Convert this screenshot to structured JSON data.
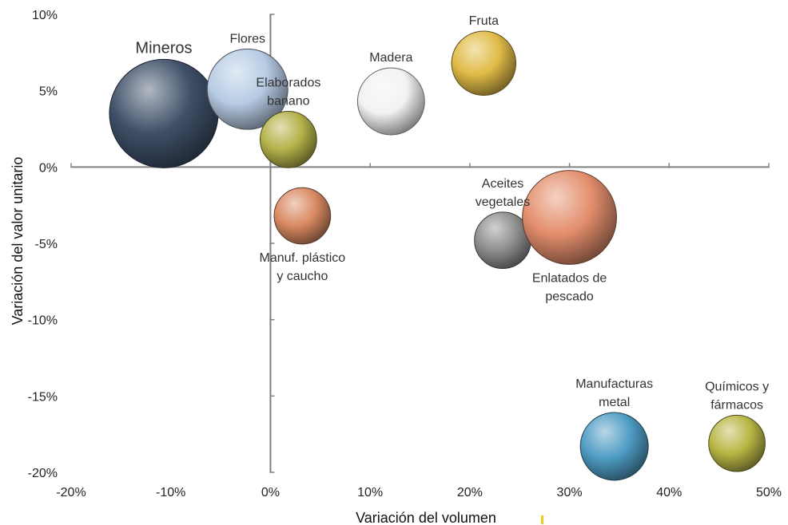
{
  "chart_data": {
    "type": "scatter",
    "title": "",
    "xlabel": "Variación del volumen",
    "ylabel": "Variación del valor unitario",
    "xlim": [
      -0.2,
      0.5
    ],
    "ylim": [
      -0.2,
      0.1
    ],
    "x_ticks": [
      {
        "value": -0.2,
        "label": "-20%"
      },
      {
        "value": -0.1,
        "label": "-10%"
      },
      {
        "value": 0.0,
        "label": "0%"
      },
      {
        "value": 0.1,
        "label": "10%"
      },
      {
        "value": 0.2,
        "label": "20%"
      },
      {
        "value": 0.3,
        "label": "30%"
      },
      {
        "value": 0.4,
        "label": "40%"
      },
      {
        "value": 0.5,
        "label": "50%"
      }
    ],
    "y_ticks": [
      {
        "value": 0.1,
        "label": "10%"
      },
      {
        "value": 0.05,
        "label": "5%"
      },
      {
        "value": 0.0,
        "label": "0%"
      },
      {
        "value": -0.05,
        "label": "-5%"
      },
      {
        "value": -0.1,
        "label": "-10%"
      },
      {
        "value": -0.15,
        "label": "-15%"
      },
      {
        "value": -0.2,
        "label": "-20%"
      }
    ],
    "grid": false,
    "legend": "none",
    "points": [
      {
        "name": "Mineros",
        "lines": [
          "Mineros"
        ],
        "x": -0.107,
        "y": 0.035,
        "size": 1.0,
        "color": "#3f5068",
        "label_pos": "top",
        "big": true
      },
      {
        "name": "Flores",
        "lines": [
          "Flores"
        ],
        "x": -0.023,
        "y": 0.051,
        "size": 0.55,
        "color": "#b7cbe4",
        "label_pos": "top"
      },
      {
        "name": "Elaborados banano",
        "lines": [
          "Elaborados",
          "banano"
        ],
        "x": 0.018,
        "y": 0.018,
        "size": 0.27,
        "color": "#b4b24a",
        "label_pos": "top"
      },
      {
        "name": "Madera",
        "lines": [
          "Madera"
        ],
        "x": 0.121,
        "y": 0.043,
        "size": 0.38,
        "color": "#f2f2f2",
        "label_pos": "top"
      },
      {
        "name": "Fruta",
        "lines": [
          "Fruta"
        ],
        "x": 0.214,
        "y": 0.068,
        "size": 0.35,
        "color": "#e0bb47",
        "label_pos": "top"
      },
      {
        "name": "Manuf. plástico y caucho",
        "lines": [
          "Manuf. plástico",
          "y caucho"
        ],
        "x": 0.032,
        "y": -0.032,
        "size": 0.27,
        "color": "#d98a62",
        "label_pos": "bottom"
      },
      {
        "name": "Aceites vegetales",
        "lines": [
          "Aceites",
          "vegetales"
        ],
        "x": 0.233,
        "y": -0.048,
        "size": 0.27,
        "color": "#8f8f8f",
        "label_pos": "top"
      },
      {
        "name": "Enlatados de pescado",
        "lines": [
          "Enlatados de",
          "pescado"
        ],
        "x": 0.3,
        "y": -0.033,
        "size": 0.75,
        "color": "#e38e6c",
        "label_pos": "bottom"
      },
      {
        "name": "Manufacturas metal",
        "lines": [
          "Manufacturas",
          "metal"
        ],
        "x": 0.345,
        "y": -0.183,
        "size": 0.39,
        "color": "#4f9cc4",
        "label_pos": "top"
      },
      {
        "name": "Químicos y fármacos",
        "lines": [
          "Químicos y",
          "fármacos"
        ],
        "x": 0.468,
        "y": -0.181,
        "size": 0.27,
        "color": "#b9b645",
        "label_pos": "top"
      }
    ]
  }
}
